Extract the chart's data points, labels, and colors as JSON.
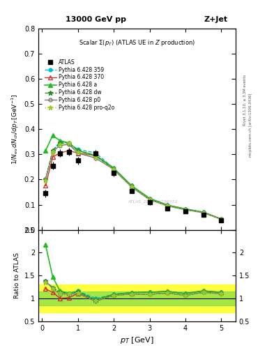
{
  "title_top": "13000 GeV pp",
  "title_right": "Z+Jet",
  "plot_title": "Scalar Σ(p_T) (ATLAS UE in Z production)",
  "ylabel_main": "1/N$_{ev}$ dN$_{ch}$/dp$_T$ [GeV]",
  "ylabel_ratio": "Ratio to ATLAS",
  "xlabel": "p$_T$ [GeV]",
  "watermark": "ATLAS_2019_I1736531",
  "right_label1": "Rivet 3.1.10, ≥ 3.3M events",
  "right_label2": "mcplots.cern.ch [arXiv:1306.3436]",
  "pt_points": [
    0.1,
    0.3,
    0.5,
    0.75,
    1.0,
    1.5,
    2.0,
    2.5,
    3.0,
    3.5,
    4.0,
    4.5,
    5.0
  ],
  "atlas_y": [
    0.145,
    0.255,
    0.305,
    0.31,
    0.275,
    0.305,
    0.225,
    0.155,
    0.11,
    0.085,
    0.075,
    0.06,
    0.038
  ],
  "atlas_yerr": [
    0.015,
    0.015,
    0.015,
    0.015,
    0.015,
    0.012,
    0.012,
    0.01,
    0.01,
    0.008,
    0.008,
    0.006,
    0.004
  ],
  "p359_y": [
    0.2,
    0.315,
    0.35,
    0.345,
    0.32,
    0.305,
    0.245,
    0.175,
    0.125,
    0.098,
    0.083,
    0.07,
    0.043
  ],
  "p370_y": [
    0.175,
    0.29,
    0.305,
    0.315,
    0.305,
    0.295,
    0.245,
    0.175,
    0.125,
    0.098,
    0.083,
    0.07,
    0.043
  ],
  "pa_y": [
    0.315,
    0.375,
    0.355,
    0.345,
    0.315,
    0.295,
    0.245,
    0.175,
    0.125,
    0.098,
    0.083,
    0.07,
    0.043
  ],
  "pdw_y": [
    0.2,
    0.315,
    0.345,
    0.345,
    0.315,
    0.295,
    0.24,
    0.17,
    0.12,
    0.095,
    0.08,
    0.068,
    0.042
  ],
  "pp0_y": [
    0.2,
    0.31,
    0.335,
    0.34,
    0.305,
    0.285,
    0.24,
    0.17,
    0.12,
    0.095,
    0.08,
    0.068,
    0.042
  ],
  "pproq2o_y": [
    0.195,
    0.31,
    0.34,
    0.345,
    0.31,
    0.29,
    0.24,
    0.17,
    0.12,
    0.095,
    0.08,
    0.068,
    0.042
  ],
  "color_359": "#00BBCC",
  "color_370": "#CC3333",
  "color_a": "#22BB22",
  "color_dw": "#228822",
  "color_p0": "#777777",
  "color_proq2o": "#99CC22",
  "ylim_main": [
    0.0,
    0.8
  ],
  "ylim_ratio": [
    0.5,
    2.5
  ],
  "xlim": [
    -0.1,
    5.4
  ],
  "band_yellow_lo": 0.7,
  "band_yellow_hi": 1.3,
  "band_green_lo": 0.85,
  "band_green_hi": 1.15
}
